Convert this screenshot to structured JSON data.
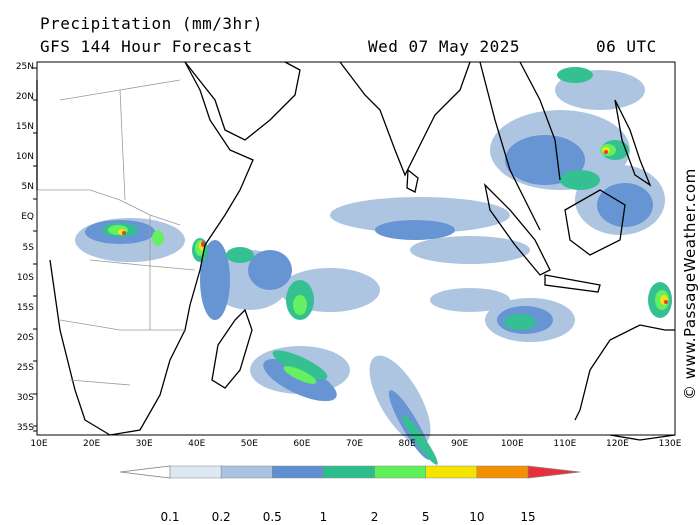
{
  "header": {
    "title": "Precipitation (mm/3hr)",
    "subtitle": "GFS 144 Hour Forecast",
    "datetime": "Wed 07 May 2025",
    "utc": "06 UTC"
  },
  "credit": "© www.PassageWeather.com",
  "axes": {
    "lat_ticks": [
      "25N",
      "20N",
      "15N",
      "10N",
      "5N",
      "EQ",
      "5S",
      "10S",
      "15S",
      "20S",
      "25S",
      "30S",
      "35S"
    ],
    "lon_ticks": [
      "10E",
      "20E",
      "30E",
      "40E",
      "50E",
      "60E",
      "70E",
      "80E",
      "90E",
      "100E",
      "110E",
      "120E",
      "130E"
    ]
  },
  "colorbar": {
    "labels": [
      "0.1",
      "0.2",
      "0.5",
      "1",
      "2",
      "5",
      "10",
      "15"
    ],
    "colors": [
      "#ffffff",
      "#dce8f4",
      "#a9c2e0",
      "#5f8fd0",
      "#2bbd8c",
      "#5df05a",
      "#f5e400",
      "#f38f00",
      "#e8303a"
    ]
  },
  "map_colors": {
    "coast": "#000000",
    "border": "#9a9a9a",
    "frame": "#000000"
  }
}
